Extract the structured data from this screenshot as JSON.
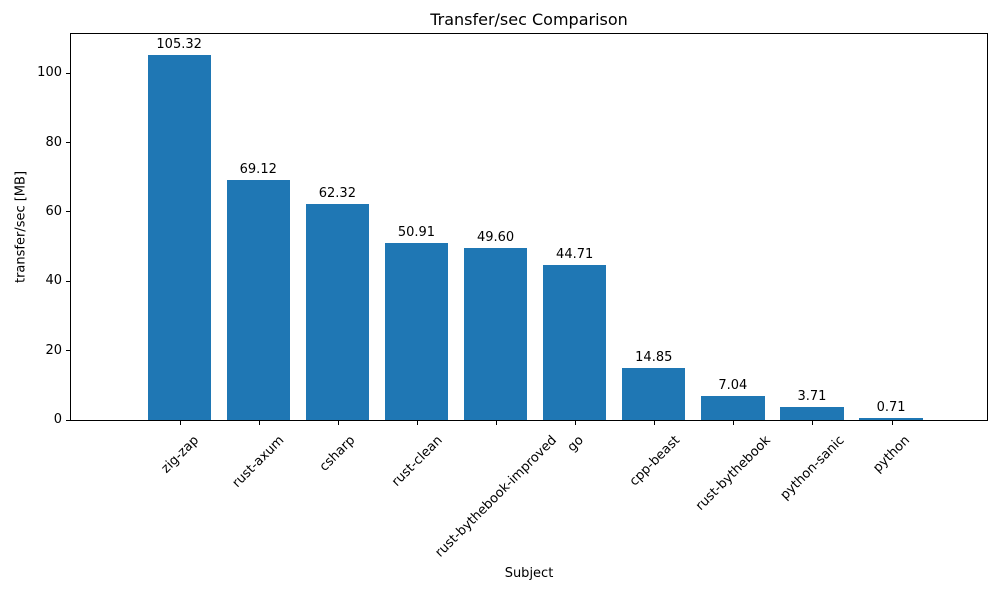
{
  "chart_data": {
    "type": "bar",
    "title": "Transfer/sec Comparison",
    "xlabel": "Subject",
    "ylabel": "transfer/sec [MB]",
    "categories": [
      "zig-zap",
      "rust-axum",
      "csharp",
      "rust-clean",
      "rust-bythebook-improved",
      "go",
      "cpp-beast",
      "rust-bythebook",
      "python-sanic",
      "python"
    ],
    "values": [
      105.32,
      69.12,
      62.32,
      50.91,
      49.6,
      44.71,
      14.85,
      7.04,
      3.71,
      0.71
    ],
    "value_labels": [
      "105.32",
      "69.12",
      "62.32",
      "50.91",
      "49.60",
      "44.71",
      "14.85",
      "7.04",
      "3.71",
      "0.71"
    ],
    "ytick_values": [
      0,
      20,
      40,
      60,
      80,
      100
    ],
    "ytick_labels": [
      "0",
      "20",
      "40",
      "60",
      "80",
      "100"
    ],
    "ylim": [
      0,
      111.3
    ],
    "xtick_rotation_deg": 45,
    "bar_color": "#1f77b4",
    "axis_color": "#000000",
    "text_color": "#000000",
    "background_color": "#ffffff",
    "grid": false,
    "legend_position": "none"
  }
}
